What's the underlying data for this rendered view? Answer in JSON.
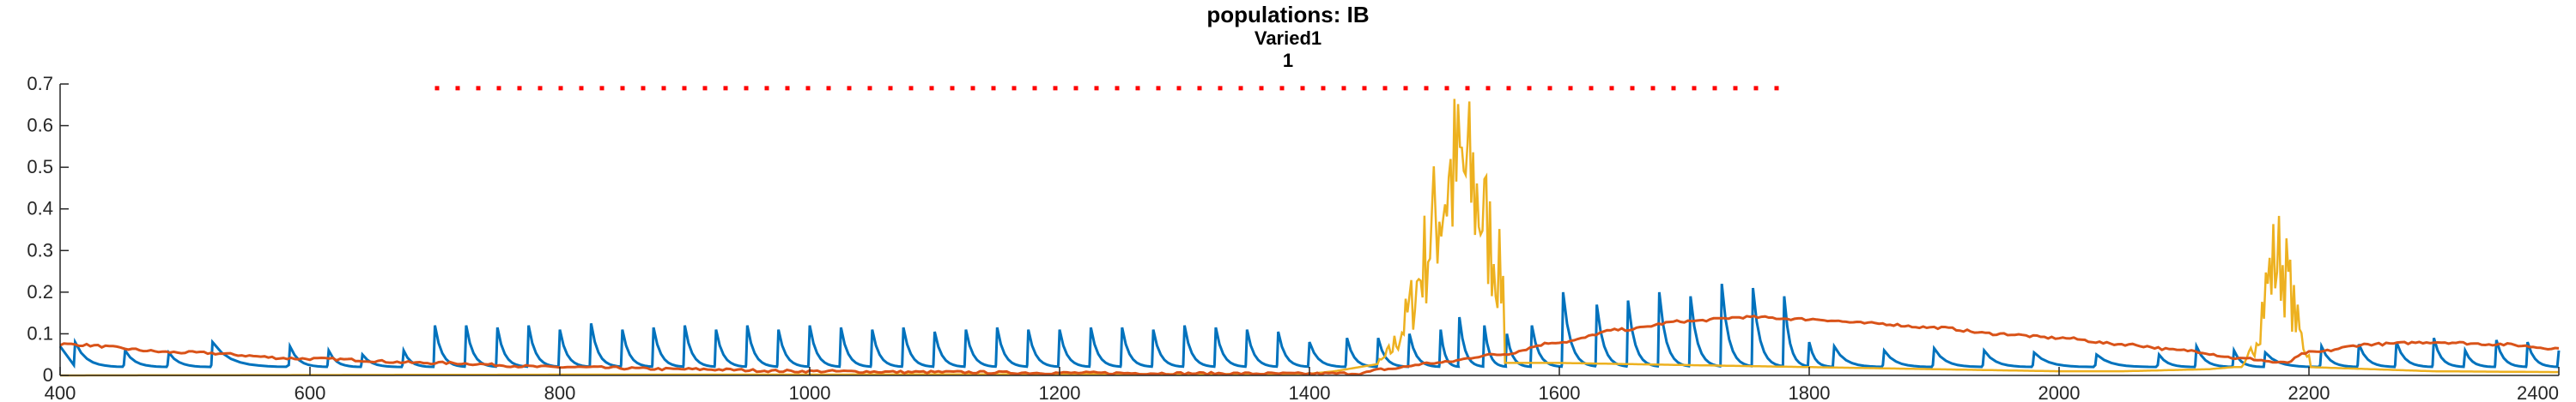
{
  "chart_data": {
    "type": "line",
    "title": "populations: IB",
    "subtitle_lines": [
      "Varied1",
      "1"
    ],
    "xlabel": "",
    "ylabel": "",
    "xlim": [
      400,
      2400
    ],
    "ylim": [
      0,
      0.7
    ],
    "x_ticks": [
      400,
      600,
      800,
      1000,
      1200,
      1400,
      1600,
      1800,
      2000,
      2200,
      2400
    ],
    "y_ticks": [
      0,
      0.1,
      0.2,
      0.3,
      0.4,
      0.5,
      0.6,
      0.7
    ],
    "x_tick_labels": [
      "400",
      "600",
      "800",
      "1000",
      "1200",
      "1400",
      "1600",
      "1800",
      "2000",
      "2200",
      "2400"
    ],
    "y_tick_labels": [
      "0",
      "0.1",
      "0.2",
      "0.3",
      "0.4",
      "0.5",
      "0.6",
      "0.7"
    ],
    "grid": false,
    "series": [
      {
        "color": "#0072BD",
        "style": "sawtooth spikes",
        "spikes": [
          {
            "x": 412,
            "peak": 0.08
          },
          {
            "x": 452,
            "peak": 0.06
          },
          {
            "x": 487,
            "peak": 0.055
          },
          {
            "x": 522,
            "peak": 0.08
          },
          {
            "x": 584,
            "peak": 0.07
          },
          {
            "x": 615,
            "peak": 0.06
          },
          {
            "x": 642,
            "peak": 0.05
          },
          {
            "x": 675,
            "peak": 0.06
          },
          {
            "x": 700,
            "peak": 0.12
          },
          {
            "x": 725,
            "peak": 0.12
          },
          {
            "x": 750,
            "peak": 0.115
          },
          {
            "x": 775,
            "peak": 0.12
          },
          {
            "x": 800,
            "peak": 0.11
          },
          {
            "x": 825,
            "peak": 0.125
          },
          {
            "x": 850,
            "peak": 0.11
          },
          {
            "x": 875,
            "peak": 0.115
          },
          {
            "x": 900,
            "peak": 0.12
          },
          {
            "x": 925,
            "peak": 0.11
          },
          {
            "x": 950,
            "peak": 0.12
          },
          {
            "x": 975,
            "peak": 0.11
          },
          {
            "x": 1000,
            "peak": 0.12
          },
          {
            "x": 1025,
            "peak": 0.115
          },
          {
            "x": 1050,
            "peak": 0.11
          },
          {
            "x": 1075,
            "peak": 0.115
          },
          {
            "x": 1100,
            "peak": 0.105
          },
          {
            "x": 1125,
            "peak": 0.11
          },
          {
            "x": 1150,
            "peak": 0.115
          },
          {
            "x": 1175,
            "peak": 0.11
          },
          {
            "x": 1200,
            "peak": 0.11
          },
          {
            "x": 1225,
            "peak": 0.115
          },
          {
            "x": 1250,
            "peak": 0.115
          },
          {
            "x": 1275,
            "peak": 0.11
          },
          {
            "x": 1300,
            "peak": 0.12
          },
          {
            "x": 1325,
            "peak": 0.115
          },
          {
            "x": 1350,
            "peak": 0.11
          },
          {
            "x": 1375,
            "peak": 0.105
          },
          {
            "x": 1400,
            "peak": 0.08
          },
          {
            "x": 1430,
            "peak": 0.09
          },
          {
            "x": 1455,
            "peak": 0.09
          },
          {
            "x": 1480,
            "peak": 0.1
          },
          {
            "x": 1505,
            "peak": 0.11
          },
          {
            "x": 1520,
            "peak": 0.14
          },
          {
            "x": 1540,
            "peak": 0.12
          },
          {
            "x": 1558,
            "peak": 0.1
          },
          {
            "x": 1578,
            "peak": 0.12
          },
          {
            "x": 1603,
            "peak": 0.2
          },
          {
            "x": 1630,
            "peak": 0.17
          },
          {
            "x": 1655,
            "peak": 0.18
          },
          {
            "x": 1680,
            "peak": 0.2
          },
          {
            "x": 1705,
            "peak": 0.19
          },
          {
            "x": 1730,
            "peak": 0.22
          },
          {
            "x": 1755,
            "peak": 0.21
          },
          {
            "x": 1780,
            "peak": 0.19
          },
          {
            "x": 1800,
            "peak": 0.08
          },
          {
            "x": 1820,
            "peak": 0.07
          },
          {
            "x": 1860,
            "peak": 0.06
          },
          {
            "x": 1900,
            "peak": 0.065
          },
          {
            "x": 1940,
            "peak": 0.06
          },
          {
            "x": 1980,
            "peak": 0.055
          },
          {
            "x": 2030,
            "peak": 0.05
          },
          {
            "x": 2080,
            "peak": 0.05
          },
          {
            "x": 2110,
            "peak": 0.07
          },
          {
            "x": 2140,
            "peak": 0.06
          },
          {
            "x": 2165,
            "peak": 0.055
          },
          {
            "x": 2210,
            "peak": 0.07
          },
          {
            "x": 2240,
            "peak": 0.075
          },
          {
            "x": 2270,
            "peak": 0.08
          },
          {
            "x": 2300,
            "peak": 0.09
          },
          {
            "x": 2325,
            "peak": 0.06
          },
          {
            "x": 2350,
            "peak": 0.085
          },
          {
            "x": 2375,
            "peak": 0.08
          }
        ],
        "baseline": 0.02
      },
      {
        "color": "#D95319",
        "style": "smooth",
        "x": [
          400,
          500,
          600,
          700,
          800,
          900,
          1000,
          1100,
          1200,
          1300,
          1400,
          1440,
          1460,
          1500,
          1550,
          1600,
          1650,
          1700,
          1750,
          1800,
          1850,
          1900,
          1950,
          2000,
          2050,
          2100,
          2150,
          2180,
          2200,
          2250,
          2300,
          2350,
          2400
        ],
        "y": [
          0.075,
          0.055,
          0.04,
          0.03,
          0.02,
          0.015,
          0.01,
          0.008,
          0.006,
          0.005,
          0.004,
          0.005,
          0.015,
          0.03,
          0.05,
          0.08,
          0.11,
          0.13,
          0.14,
          0.135,
          0.125,
          0.115,
          0.1,
          0.09,
          0.075,
          0.06,
          0.04,
          0.03,
          0.055,
          0.075,
          0.08,
          0.075,
          0.065
        ]
      },
      {
        "color": "#EDB120",
        "style": "bursts",
        "x": [
          400,
          600,
          800,
          1000,
          1200,
          1300,
          1400,
          1420,
          1440,
          1460,
          1600,
          1800,
          1900,
          2000,
          2050,
          2120,
          2140,
          2200,
          2300,
          2400
        ],
        "y": [
          0.0,
          0.001,
          0.002,
          0.002,
          0.003,
          0.003,
          0.004,
          0.01,
          0.02,
          0.03,
          0.03,
          0.02,
          0.015,
          0.01,
          0.01,
          0.015,
          0.02,
          0.02,
          0.01,
          0.008
        ],
        "bursts": [
          {
            "x_start": 1420,
            "x_end": 1555,
            "peak": 0.7,
            "peak_x": 1520
          },
          {
            "x_start": 2140,
            "x_end": 2200,
            "peak": 0.4,
            "peak_x": 2175
          }
        ]
      },
      {
        "color": "#FF0000",
        "style": "dotted",
        "x_start": 700,
        "x_end": 1780,
        "y": 0.69
      }
    ]
  }
}
